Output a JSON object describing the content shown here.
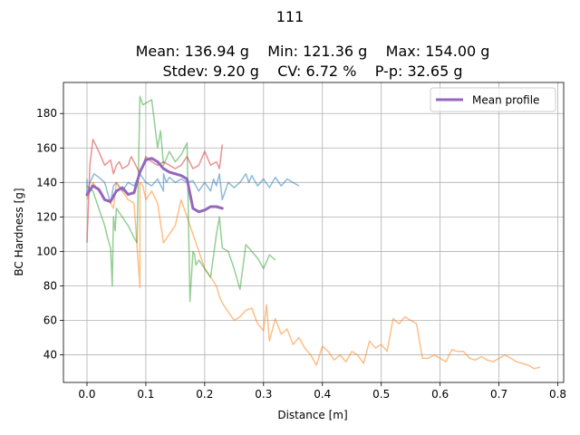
{
  "chart_data": {
    "type": "line",
    "title": "111",
    "stats_line1": "Mean: 136.94 g    Min: 121.36 g    Max: 154.00 g",
    "stats_line2": "Stdev: 9.20 g    CV: 6.72 %    P-p: 32.65 g",
    "xlabel": "Distance [m]",
    "ylabel": "BC Hardness [g]",
    "xlim": [
      -0.04,
      0.81
    ],
    "ylim": [
      24,
      198
    ],
    "xticks": [
      0.0,
      0.1,
      0.2,
      0.3,
      0.4,
      0.5,
      0.6,
      0.7,
      0.8
    ],
    "xtick_labels": [
      "0.0",
      "0.1",
      "0.2",
      "0.3",
      "0.4",
      "0.5",
      "0.6",
      "0.7",
      "0.8"
    ],
    "yticks": [
      40,
      60,
      80,
      100,
      120,
      140,
      160,
      180
    ],
    "ytick_labels": [
      "40",
      "60",
      "80",
      "100",
      "120",
      "140",
      "160",
      "180"
    ],
    "grid": true,
    "legend_position": "top-right",
    "series": [
      {
        "color": "#1f77b4",
        "x": [
          0.0,
          0.0,
          0.005,
          0.012,
          0.02,
          0.03,
          0.04,
          0.045,
          0.05,
          0.06,
          0.07,
          0.08,
          0.09,
          0.1,
          0.11,
          0.12,
          0.13,
          0.13,
          0.135,
          0.14,
          0.15,
          0.16,
          0.17,
          0.18,
          0.19,
          0.2,
          0.21,
          0.215,
          0.22,
          0.225,
          0.23,
          0.24,
          0.25,
          0.26,
          0.27,
          0.275,
          0.28,
          0.29,
          0.3,
          0.31,
          0.32,
          0.33,
          0.34,
          0.35,
          0.36
        ],
        "y": [
          142,
          132,
          140,
          145,
          143,
          140,
          128,
          138,
          140,
          135,
          140,
          138,
          145,
          140,
          138,
          142,
          135,
          145,
          140,
          143,
          140,
          142,
          140,
          141,
          135,
          140,
          135,
          142,
          138,
          145,
          130,
          140,
          137,
          140,
          145,
          140,
          144,
          138,
          142,
          137,
          143,
          138,
          142,
          140,
          138
        ]
      },
      {
        "color": "#ff7f0e",
        "x": [
          0.0,
          0.01,
          0.02,
          0.03,
          0.04,
          0.045,
          0.05,
          0.06,
          0.07,
          0.08,
          0.09,
          0.09,
          0.095,
          0.1,
          0.11,
          0.12,
          0.13,
          0.14,
          0.15,
          0.16,
          0.17,
          0.18,
          0.19,
          0.2,
          0.21,
          0.22,
          0.225,
          0.23,
          0.24,
          0.25,
          0.26,
          0.27,
          0.28,
          0.29,
          0.3,
          0.305,
          0.31,
          0.32,
          0.33,
          0.34,
          0.35,
          0.36,
          0.37,
          0.38,
          0.39,
          0.4,
          0.41,
          0.42,
          0.43,
          0.44,
          0.45,
          0.46,
          0.47,
          0.48,
          0.49,
          0.5,
          0.51,
          0.52,
          0.53,
          0.54,
          0.55,
          0.56,
          0.57,
          0.58,
          0.59,
          0.6,
          0.61,
          0.62,
          0.63,
          0.64,
          0.65,
          0.66,
          0.67,
          0.68,
          0.69,
          0.7,
          0.71,
          0.72,
          0.73,
          0.74,
          0.75,
          0.76,
          0.77
        ],
        "y": [
          130,
          140,
          135,
          130,
          128,
          125,
          140,
          135,
          130,
          128,
          79,
          140,
          138,
          130,
          135,
          128,
          105,
          110,
          115,
          130,
          120,
          110,
          100,
          90,
          85,
          80,
          74,
          70,
          65,
          60,
          62,
          66,
          67,
          58,
          54,
          69,
          48,
          61,
          52,
          55,
          46,
          50,
          44,
          40,
          34,
          45,
          42,
          37,
          40,
          36,
          42,
          40,
          35,
          48,
          44,
          46,
          42,
          61,
          58,
          62,
          60,
          58,
          38,
          38,
          40,
          38,
          36,
          43,
          42,
          42,
          38,
          37,
          39,
          37,
          36,
          38,
          40,
          38,
          36,
          35,
          34,
          32,
          33
        ]
      },
      {
        "color": "#2ca02c",
        "x": [
          0.0,
          0.01,
          0.02,
          0.03,
          0.035,
          0.04,
          0.043,
          0.045,
          0.048,
          0.05,
          0.06,
          0.07,
          0.08,
          0.085,
          0.09,
          0.095,
          0.1,
          0.11,
          0.12,
          0.125,
          0.13,
          0.14,
          0.15,
          0.16,
          0.17,
          0.175,
          0.18,
          0.183,
          0.185,
          0.19,
          0.2,
          0.21,
          0.22,
          0.225,
          0.23,
          0.24,
          0.25,
          0.26,
          0.27,
          0.28,
          0.29,
          0.3,
          0.31,
          0.32
        ],
        "y": [
          138,
          135,
          125,
          115,
          108,
          102,
          80,
          120,
          112,
          125,
          120,
          115,
          108,
          105,
          190,
          185,
          186,
          188,
          160,
          170,
          150,
          158,
          152,
          156,
          163,
          71,
          100,
          98,
          92,
          95,
          90,
          85,
          110,
          120,
          102,
          100,
          90,
          78,
          104,
          100,
          96,
          90,
          98,
          95
        ]
      },
      {
        "color": "#d62728",
        "x": [
          0.0,
          0.005,
          0.01,
          0.02,
          0.03,
          0.04,
          0.045,
          0.05,
          0.055,
          0.06,
          0.07,
          0.075,
          0.08,
          0.09,
          0.1,
          0.11,
          0.12,
          0.13,
          0.14,
          0.15,
          0.16,
          0.17,
          0.18,
          0.19,
          0.2,
          0.21,
          0.22,
          0.225,
          0.23
        ],
        "y": [
          105,
          150,
          165,
          158,
          150,
          153,
          145,
          150,
          152,
          148,
          150,
          155,
          152,
          145,
          155,
          152,
          150,
          152,
          150,
          148,
          150,
          155,
          148,
          150,
          158,
          150,
          152,
          148,
          162
        ]
      }
    ],
    "mean_profile": {
      "name": "Mean profile",
      "color": "#9467bd",
      "x": [
        0.0,
        0.01,
        0.02,
        0.03,
        0.04,
        0.05,
        0.06,
        0.07,
        0.08,
        0.09,
        0.1,
        0.11,
        0.12,
        0.13,
        0.14,
        0.15,
        0.16,
        0.17,
        0.18,
        0.19,
        0.2,
        0.21,
        0.22,
        0.23
      ],
      "y": [
        133,
        138,
        136,
        130,
        129,
        135,
        137,
        133,
        134,
        146,
        153,
        154,
        152,
        148,
        146,
        145,
        144,
        142,
        125,
        123,
        124,
        126,
        126,
        125
      ]
    }
  }
}
